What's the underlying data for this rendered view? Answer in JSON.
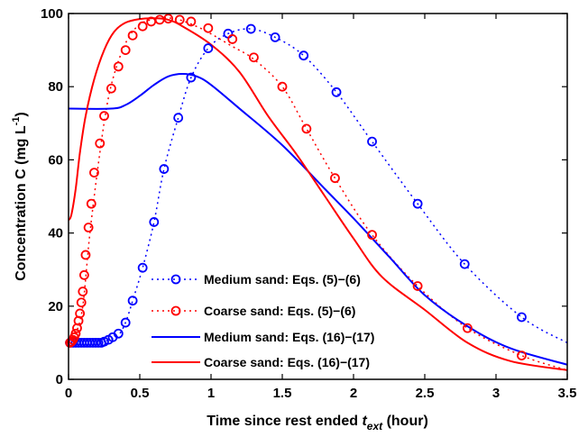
{
  "chart_data": {
    "type": "line",
    "xlabel": "Time since rest ended",
    "xlabel_var": "t",
    "xlabel_sub": "ext",
    "xlabel_unit": "(hour)",
    "ylabel": "Concentration C (mg L",
    "ylabel_sup": "-1",
    "ylabel_close": ")",
    "xlim": [
      0,
      3.5
    ],
    "ylim": [
      0,
      100
    ],
    "xticks": [
      0,
      0.5,
      1,
      1.5,
      2,
      2.5,
      3,
      3.5
    ],
    "xtick_labels": [
      "0",
      "0.5",
      "1",
      "1.5",
      "2",
      "2.5",
      "3",
      "3.5"
    ],
    "yticks": [
      0,
      20,
      40,
      60,
      80,
      100
    ],
    "ytick_labels": [
      "0",
      "20",
      "40",
      "60",
      "80",
      "100"
    ],
    "grid": false,
    "legend_position": "bottom-left",
    "series": [
      {
        "name": "Medium sand: Eqs. (5)−(6)",
        "color": "#0000ff",
        "style": "dotted-circles",
        "curve": [
          [
            0,
            10
          ],
          [
            0.2,
            10
          ],
          [
            0.3,
            11
          ],
          [
            0.35,
            12
          ],
          [
            0.4,
            15.5
          ],
          [
            0.45,
            21.5
          ],
          [
            0.52,
            30.5
          ],
          [
            0.6,
            43
          ],
          [
            0.67,
            57.5
          ],
          [
            0.77,
            71.5
          ],
          [
            0.86,
            82.5
          ],
          [
            0.98,
            90.5
          ],
          [
            1.12,
            94.5
          ],
          [
            1.28,
            95.8
          ],
          [
            1.45,
            93.5
          ],
          [
            1.65,
            88.5
          ],
          [
            1.88,
            78.5
          ],
          [
            2.13,
            65
          ],
          [
            2.45,
            48
          ],
          [
            2.78,
            31.5
          ],
          [
            3.18,
            17
          ],
          [
            3.5,
            10
          ]
        ],
        "markers": [
          [
            0.01,
            10
          ],
          [
            0.03,
            10
          ],
          [
            0.05,
            10
          ],
          [
            0.07,
            10
          ],
          [
            0.09,
            10
          ],
          [
            0.11,
            10
          ],
          [
            0.13,
            10
          ],
          [
            0.15,
            10
          ],
          [
            0.17,
            10
          ],
          [
            0.19,
            10
          ],
          [
            0.21,
            10
          ],
          [
            0.23,
            10
          ],
          [
            0.25,
            10.3
          ],
          [
            0.28,
            10.8
          ],
          [
            0.31,
            11.5
          ],
          [
            0.35,
            12.5
          ],
          [
            0.4,
            15.5
          ],
          [
            0.45,
            21.5
          ],
          [
            0.52,
            30.5
          ],
          [
            0.6,
            43
          ],
          [
            0.67,
            57.5
          ],
          [
            0.77,
            71.5
          ],
          [
            0.86,
            82.5
          ],
          [
            0.98,
            90.5
          ],
          [
            1.12,
            94.5
          ],
          [
            1.28,
            95.8
          ],
          [
            1.45,
            93.5
          ],
          [
            1.65,
            88.5
          ],
          [
            1.88,
            78.5
          ],
          [
            2.13,
            65
          ],
          [
            2.45,
            48
          ],
          [
            2.78,
            31.5
          ],
          [
            3.18,
            17
          ]
        ]
      },
      {
        "name": "Coarse sand: Eqs. (5)−(6)",
        "color": "#ff0000",
        "style": "dotted-circles",
        "curve": [
          [
            0,
            10
          ],
          [
            0.05,
            12.5
          ],
          [
            0.1,
            20
          ],
          [
            0.15,
            40
          ],
          [
            0.22,
            62
          ],
          [
            0.28,
            77
          ],
          [
            0.35,
            87
          ],
          [
            0.43,
            94
          ],
          [
            0.52,
            97.5
          ],
          [
            0.62,
            98.5
          ],
          [
            0.7,
            98.8
          ],
          [
            0.8,
            98
          ],
          [
            0.95,
            95.5
          ],
          [
            1.15,
            91
          ],
          [
            1.3,
            87.5
          ],
          [
            1.5,
            80
          ],
          [
            1.67,
            68.5
          ],
          [
            1.87,
            55
          ],
          [
            2.13,
            39.5
          ],
          [
            2.45,
            25.5
          ],
          [
            2.8,
            14
          ],
          [
            3.18,
            6.5
          ],
          [
            3.5,
            2.5
          ]
        ],
        "markers": [
          [
            0.01,
            10
          ],
          [
            0.02,
            10.3
          ],
          [
            0.03,
            10.8
          ],
          [
            0.04,
            11.5
          ],
          [
            0.05,
            12.5
          ],
          [
            0.06,
            14
          ],
          [
            0.07,
            16
          ],
          [
            0.08,
            18
          ],
          [
            0.09,
            21
          ],
          [
            0.1,
            24
          ],
          [
            0.11,
            28.5
          ],
          [
            0.12,
            34
          ],
          [
            0.14,
            41.5
          ],
          [
            0.16,
            48
          ],
          [
            0.18,
            56.5
          ],
          [
            0.22,
            64.5
          ],
          [
            0.25,
            72
          ],
          [
            0.3,
            79.5
          ],
          [
            0.35,
            85.5
          ],
          [
            0.4,
            90
          ],
          [
            0.45,
            94
          ],
          [
            0.52,
            96.5
          ],
          [
            0.58,
            97.8
          ],
          [
            0.64,
            98.3
          ],
          [
            0.7,
            98.6
          ],
          [
            0.78,
            98.3
          ],
          [
            0.86,
            97.8
          ],
          [
            0.98,
            96
          ],
          [
            1.15,
            93
          ],
          [
            1.3,
            88
          ],
          [
            1.5,
            80
          ],
          [
            1.67,
            68.5
          ],
          [
            1.87,
            55
          ],
          [
            2.13,
            39.5
          ],
          [
            2.45,
            25.5
          ],
          [
            2.8,
            14
          ],
          [
            3.18,
            6.5
          ]
        ]
      },
      {
        "name": "Medium sand: Eqs. (16)−(17)",
        "color": "#0000ff",
        "style": "solid",
        "curve": [
          [
            0,
            74
          ],
          [
            0.3,
            74
          ],
          [
            0.4,
            75
          ],
          [
            0.5,
            77.5
          ],
          [
            0.6,
            80.5
          ],
          [
            0.7,
            82.8
          ],
          [
            0.8,
            83.5
          ],
          [
            0.9,
            82.8
          ],
          [
            1,
            80.5
          ],
          [
            1.2,
            74
          ],
          [
            1.5,
            64
          ],
          [
            1.8,
            52
          ],
          [
            2,
            44
          ],
          [
            2.25,
            33.5
          ],
          [
            2.5,
            23
          ],
          [
            2.8,
            14.5
          ],
          [
            3.1,
            8.5
          ],
          [
            3.5,
            4
          ]
        ]
      },
      {
        "name": "Coarse sand: Eqs. (16)−(17)",
        "color": "#ff0000",
        "style": "solid",
        "curve": [
          [
            0,
            43.5
          ],
          [
            0.02,
            45
          ],
          [
            0.05,
            52
          ],
          [
            0.08,
            62
          ],
          [
            0.12,
            72
          ],
          [
            0.18,
            82
          ],
          [
            0.25,
            90
          ],
          [
            0.32,
            95
          ],
          [
            0.4,
            97.5
          ],
          [
            0.5,
            98.5
          ],
          [
            0.6,
            98.7
          ],
          [
            0.7,
            98.3
          ],
          [
            0.8,
            96.5
          ],
          [
            1,
            91.5
          ],
          [
            1.2,
            84
          ],
          [
            1.4,
            72
          ],
          [
            1.6,
            61.5
          ],
          [
            1.8,
            50
          ],
          [
            2,
            38.5
          ],
          [
            2.2,
            28
          ],
          [
            2.5,
            19
          ],
          [
            2.8,
            10
          ],
          [
            3.1,
            5
          ],
          [
            3.5,
            2.5
          ]
        ]
      }
    ]
  }
}
